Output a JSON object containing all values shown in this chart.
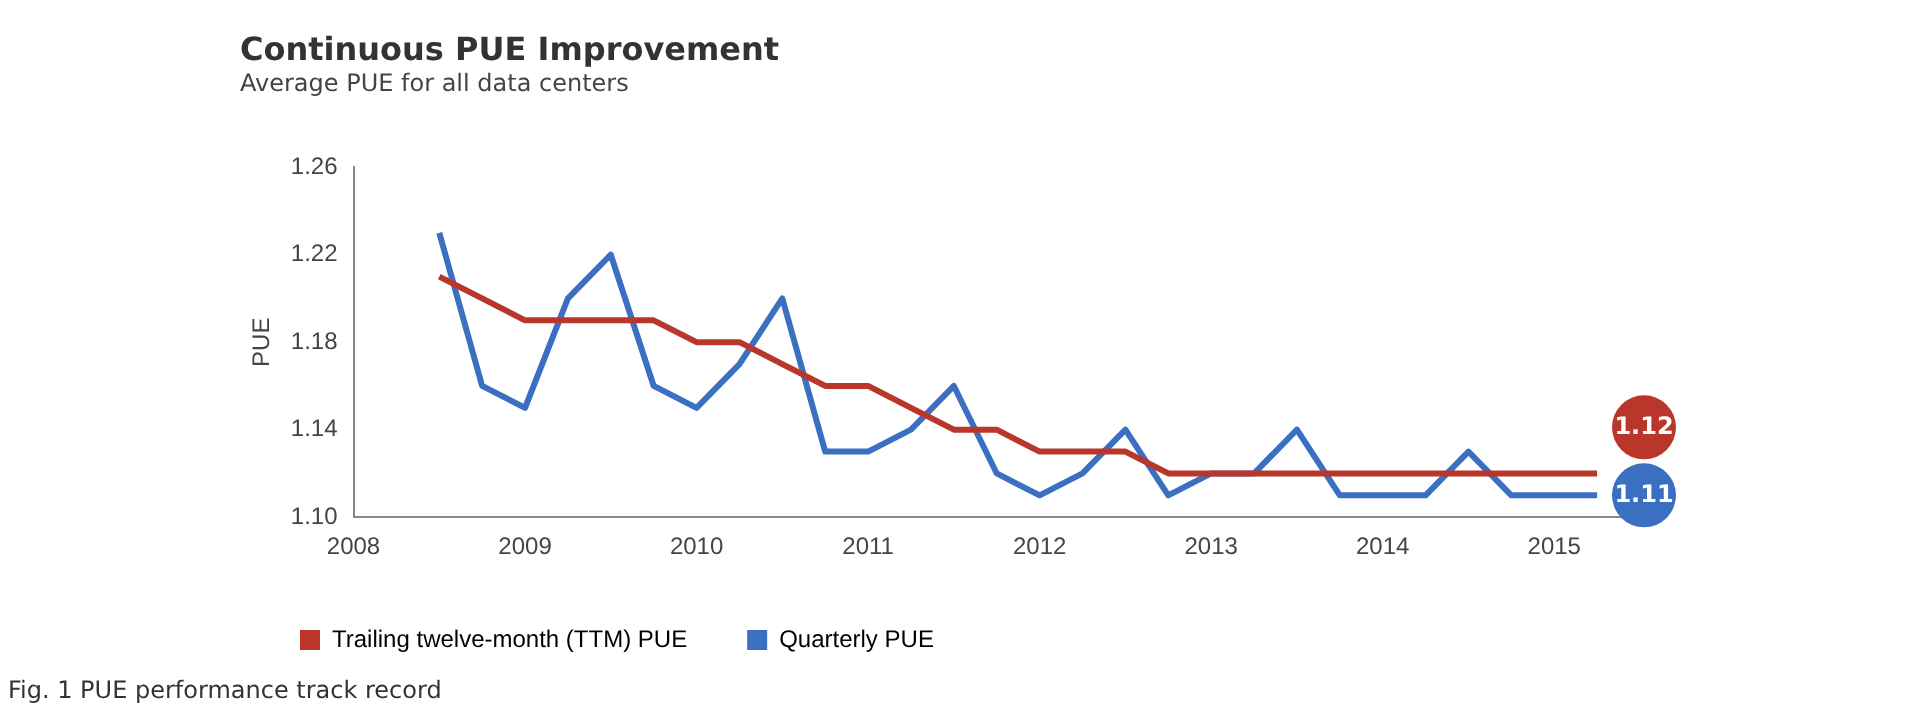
{
  "chart_data": {
    "type": "line",
    "title": "Continuous PUE Improvement",
    "subtitle": "Average PUE for all data centers",
    "ylabel": "PUE",
    "xlim": [
      2008,
      2015.5
    ],
    "xticks": [
      2008,
      2009,
      2010,
      2011,
      2012,
      2013,
      2014,
      2015
    ],
    "ylim": [
      1.1,
      1.26
    ],
    "yticks": [
      {
        "value": 1.1,
        "label": "1.10"
      },
      1.14,
      1.18,
      1.22,
      1.26
    ],
    "x": [
      2008.5,
      2008.75,
      2009,
      2009.25,
      2009.5,
      2009.75,
      2010,
      2010.25,
      2010.5,
      2010.75,
      2011,
      2011.25,
      2011.5,
      2011.75,
      2012,
      2012.25,
      2012.5,
      2012.75,
      2013,
      2013.25,
      2013.5,
      2013.75,
      2014,
      2014.25,
      2014.5,
      2014.75,
      2015,
      2015.25
    ],
    "series": [
      {
        "name": "Trailing twelve-month (TTM) PUE",
        "color": "#b9372a",
        "values": [
          1.21,
          1.2,
          1.19,
          1.19,
          1.19,
          1.19,
          1.18,
          1.18,
          1.17,
          1.16,
          1.16,
          1.15,
          1.14,
          1.14,
          1.13,
          1.13,
          1.13,
          1.12,
          1.12,
          1.12,
          1.12,
          1.12,
          1.12,
          1.12,
          1.12,
          1.12,
          1.12,
          1.12
        ],
        "value_labels": [
          null,
          null,
          null,
          null,
          null,
          null,
          null,
          null,
          null,
          null,
          null,
          null,
          null,
          null,
          null,
          null,
          null,
          null,
          null,
          null,
          null,
          null,
          null,
          null,
          null,
          null,
          null,
          "1.12"
        ]
      },
      {
        "name": "Quarterly PUE",
        "color": "#3b6fc2",
        "values": [
          1.23,
          1.16,
          1.15,
          1.2,
          1.22,
          1.16,
          1.15,
          1.17,
          1.2,
          1.13,
          1.13,
          1.14,
          1.16,
          1.12,
          1.11,
          1.12,
          1.14,
          1.11,
          1.12,
          1.12,
          1.14,
          1.11,
          1.11,
          1.11,
          1.13,
          1.11,
          1.11,
          1.11
        ],
        "value_labels": [
          null,
          null,
          null,
          null,
          null,
          null,
          null,
          null,
          null,
          null,
          null,
          null,
          null,
          null,
          null,
          null,
          null,
          null,
          null,
          null,
          null,
          null,
          null,
          null,
          null,
          null,
          null,
          "1.11"
        ]
      }
    ],
    "grid": false,
    "legend": "bottom",
    "marker": "none",
    "line_style": "solid",
    "annotations": [
      "Fig. 1 PUE performance track record"
    ]
  }
}
